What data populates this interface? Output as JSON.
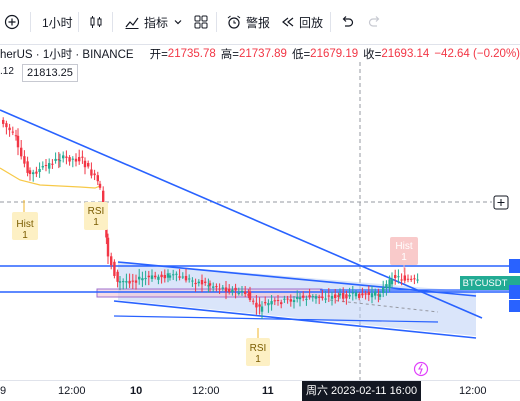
{
  "toolbar": {
    "interval_label": "1小时",
    "indicators_label": "指标",
    "alerts_label": "警报",
    "replay_label": "回放"
  },
  "legend": {
    "symbol": "herUS · 1小时 · BINANCE",
    "open_label": "开=",
    "open": "21735.78",
    "high_label": "高=",
    "high": "21737.89",
    "low_label": "低=",
    "low": "21679.19",
    "close_label": "收=",
    "close": "21693.14",
    "change": "−42.64 (−0.20%)",
    "colors": {
      "down": "#f23645",
      "up": "#22ab94"
    }
  },
  "price_box": "21813.25",
  "small_value": ".12",
  "markers": [
    {
      "title": "Hist",
      "num": "1"
    },
    {
      "title": "RSI",
      "num": "1"
    },
    {
      "title": "RSI",
      "num": "1"
    },
    {
      "title": "Hist",
      "num": "1"
    }
  ],
  "symbol_tag": "BTCUSDT",
  "x_axis": {
    "labels": [
      "9",
      "12:00",
      "10",
      "12:00",
      "11",
      "12:00"
    ],
    "crosshair_label": "周六 2023-02-11   16:00"
  }
}
